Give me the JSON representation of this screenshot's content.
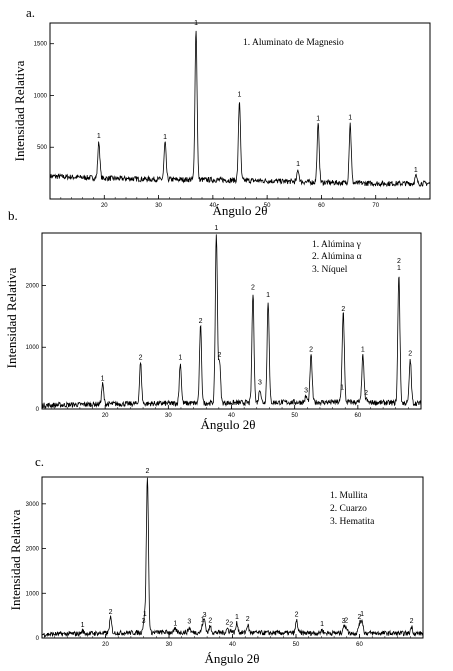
{
  "panel_labels": [
    "a.",
    "b.",
    "c."
  ],
  "chart_data": [
    {
      "type": "line",
      "ylabel": "Intensidad Relativa",
      "xlabel": "Ángulo 2θ",
      "xlim": [
        10,
        80
      ],
      "ylim": [
        0,
        1700
      ],
      "x_ticks": [
        20,
        30,
        40,
        50,
        60,
        70
      ],
      "y_ticks": [
        500,
        1000,
        1500
      ],
      "legend": [
        "1. Aluminato de Magnesio"
      ],
      "baseline": [
        [
          10,
          220
        ],
        [
          20,
          200
        ],
        [
          30,
          190
        ],
        [
          40,
          185
        ],
        [
          50,
          175
        ],
        [
          60,
          160
        ],
        [
          70,
          150
        ],
        [
          80,
          150
        ]
      ],
      "peaks": [
        {
          "x": 19.0,
          "y": 550,
          "label": "1"
        },
        {
          "x": 31.2,
          "y": 540,
          "label": "1"
        },
        {
          "x": 36.9,
          "y": 1640,
          "label": "1"
        },
        {
          "x": 44.9,
          "y": 950,
          "label": "1"
        },
        {
          "x": 55.7,
          "y": 280,
          "label": "1"
        },
        {
          "x": 59.4,
          "y": 720,
          "label": "1"
        },
        {
          "x": 65.3,
          "y": 730,
          "label": "1"
        },
        {
          "x": 77.4,
          "y": 220,
          "label": "1"
        }
      ]
    },
    {
      "type": "line",
      "ylabel": "Intensidad Relativa",
      "xlabel": "Ángulo 2θ",
      "xlim": [
        10,
        70
      ],
      "ylim": [
        0,
        2850
      ],
      "x_ticks": [
        20,
        30,
        40,
        50,
        60
      ],
      "y_ticks": [
        0,
        1000,
        2000
      ],
      "legend": [
        "1. Alúmina γ",
        "2. Alúmina α",
        "3. Níquel"
      ],
      "baseline": [
        [
          10,
          60
        ],
        [
          20,
          80
        ],
        [
          30,
          90
        ],
        [
          40,
          100
        ],
        [
          50,
          110
        ],
        [
          60,
          110
        ],
        [
          70,
          90
        ]
      ],
      "peaks": [
        {
          "x": 19.6,
          "y": 400,
          "label": "1"
        },
        {
          "x": 25.6,
          "y": 740,
          "label": "2"
        },
        {
          "x": 31.9,
          "y": 740,
          "label": "1"
        },
        {
          "x": 35.1,
          "y": 1330,
          "label": "2"
        },
        {
          "x": 37.6,
          "y": 2830,
          "label": "1"
        },
        {
          "x": 38.1,
          "y": 780,
          "label": "2"
        },
        {
          "x": 43.4,
          "y": 1870,
          "label": "2"
        },
        {
          "x": 44.5,
          "y": 330,
          "label": "3"
        },
        {
          "x": 45.8,
          "y": 1750,
          "label": "1"
        },
        {
          "x": 51.8,
          "y": 200,
          "label": "3"
        },
        {
          "x": 52.6,
          "y": 870,
          "label": "2"
        },
        {
          "x": 57.5,
          "y": 250,
          "label": "1"
        },
        {
          "x": 57.7,
          "y": 1520,
          "label": "2"
        },
        {
          "x": 60.8,
          "y": 870,
          "label": "1"
        },
        {
          "x": 61.3,
          "y": 160,
          "label": "2"
        },
        {
          "x": 66.5,
          "y": 2190,
          "label": "2 1"
        },
        {
          "x": 68.3,
          "y": 800,
          "label": "2"
        }
      ]
    },
    {
      "type": "line",
      "ylabel": "Intensidad Relativa",
      "xlabel": "Ángulo 2θ",
      "xlim": [
        10,
        70
      ],
      "ylim": [
        0,
        3600
      ],
      "x_ticks": [
        20,
        30,
        40,
        50,
        60
      ],
      "y_ticks": [
        0,
        1000,
        2000,
        3000
      ],
      "legend": [
        "1. Mullita",
        "2. Cuarzo",
        "3. Hematita"
      ],
      "baseline": [
        [
          10,
          80
        ],
        [
          20,
          110
        ],
        [
          30,
          130
        ],
        [
          40,
          120
        ],
        [
          50,
          110
        ],
        [
          60,
          110
        ],
        [
          70,
          100
        ]
      ],
      "peaks": [
        {
          "x": 16.4,
          "y": 160,
          "label": "1"
        },
        {
          "x": 20.8,
          "y": 450,
          "label": "2"
        },
        {
          "x": 26.0,
          "y": 250,
          "label": "3"
        },
        {
          "x": 26.2,
          "y": 400,
          "label": "1"
        },
        {
          "x": 26.6,
          "y": 3600,
          "label": "2"
        },
        {
          "x": 31.0,
          "y": 190,
          "label": "1"
        },
        {
          "x": 33.2,
          "y": 230,
          "label": "3"
        },
        {
          "x": 35.3,
          "y": 280,
          "label": "1"
        },
        {
          "x": 35.6,
          "y": 380,
          "label": "3"
        },
        {
          "x": 36.5,
          "y": 260,
          "label": "2"
        },
        {
          "x": 39.2,
          "y": 210,
          "label": "2"
        },
        {
          "x": 39.8,
          "y": 170,
          "label": "2"
        },
        {
          "x": 40.7,
          "y": 330,
          "label": "1"
        },
        {
          "x": 42.4,
          "y": 290,
          "label": "2"
        },
        {
          "x": 50.1,
          "y": 390,
          "label": "2"
        },
        {
          "x": 54.1,
          "y": 180,
          "label": "1"
        },
        {
          "x": 57.5,
          "y": 250,
          "label": "3"
        },
        {
          "x": 57.9,
          "y": 260,
          "label": "2"
        },
        {
          "x": 60.0,
          "y": 330,
          "label": "2"
        },
        {
          "x": 60.4,
          "y": 400,
          "label": "1"
        },
        {
          "x": 68.2,
          "y": 250,
          "label": "2"
        }
      ]
    }
  ]
}
